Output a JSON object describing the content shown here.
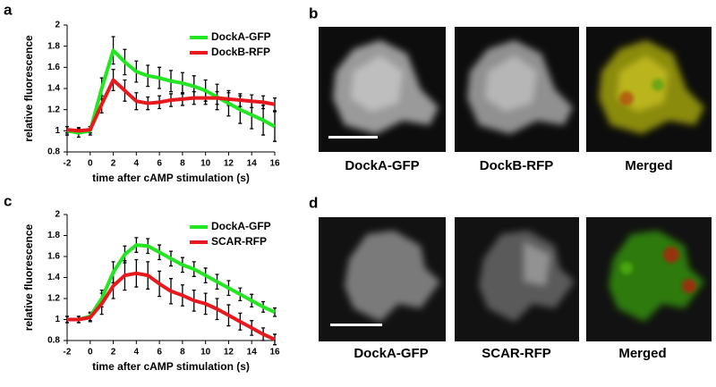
{
  "chart_data": [
    {
      "type": "line",
      "x": [
        -2,
        -1,
        0,
        1,
        2,
        3,
        4,
        5,
        6,
        7,
        8,
        9,
        10,
        11,
        12,
        13,
        14,
        15,
        16
      ],
      "xlabel": "time after cAMP stimulation (s)",
      "ylabel": "relative fluorescence",
      "xlim": [
        -2,
        16
      ],
      "xticks": [
        -2,
        0,
        2,
        4,
        6,
        8,
        10,
        12,
        14,
        16
      ],
      "ylim": [
        0.8,
        2
      ],
      "yticks": [
        0.8,
        1,
        1.2,
        1.4,
        1.6,
        1.8,
        2
      ],
      "legend": "top-right",
      "series": [
        {
          "name": "DockA-GFP",
          "color": "#22e622",
          "values": [
            1.0,
            0.98,
            1.0,
            1.4,
            1.76,
            1.65,
            1.56,
            1.52,
            1.5,
            1.47,
            1.45,
            1.42,
            1.38,
            1.32,
            1.26,
            1.2,
            1.15,
            1.1,
            1.04
          ],
          "errors": [
            0.04,
            0.04,
            0.04,
            0.1,
            0.13,
            0.12,
            0.1,
            0.1,
            0.1,
            0.1,
            0.1,
            0.1,
            0.1,
            0.12,
            0.12,
            0.13,
            0.13,
            0.14,
            0.14
          ]
        },
        {
          "name": "DockB-RFP",
          "color": "#e6191e",
          "values": [
            1.01,
            1.0,
            1.01,
            1.25,
            1.48,
            1.38,
            1.28,
            1.26,
            1.27,
            1.29,
            1.3,
            1.31,
            1.31,
            1.31,
            1.3,
            1.29,
            1.28,
            1.27,
            1.25
          ],
          "errors": [
            0.03,
            0.03,
            0.03,
            0.08,
            0.1,
            0.1,
            0.08,
            0.06,
            0.06,
            0.06,
            0.06,
            0.06,
            0.06,
            0.06,
            0.06,
            0.06,
            0.06,
            0.06,
            0.06
          ]
        }
      ]
    },
    {
      "type": "line",
      "x": [
        -2,
        -1,
        0,
        1,
        2,
        3,
        4,
        5,
        6,
        7,
        8,
        9,
        10,
        11,
        12,
        13,
        14,
        15,
        16
      ],
      "xlabel": "time after cAMP stimulation (s)",
      "ylabel": "relative fluorescence",
      "xlim": [
        -2,
        16
      ],
      "xticks": [
        -2,
        0,
        2,
        4,
        6,
        8,
        10,
        12,
        14,
        16
      ],
      "ylim": [
        0.8,
        2
      ],
      "yticks": [
        0.8,
        1,
        1.2,
        1.4,
        1.6,
        1.8,
        2
      ],
      "legend": "top-right",
      "series": [
        {
          "name": "DockA-GFP",
          "color": "#22e622",
          "values": [
            1.0,
            1.0,
            1.03,
            1.2,
            1.45,
            1.62,
            1.71,
            1.7,
            1.64,
            1.58,
            1.52,
            1.48,
            1.42,
            1.36,
            1.3,
            1.24,
            1.18,
            1.12,
            1.07
          ],
          "errors": [
            0.03,
            0.03,
            0.04,
            0.08,
            0.1,
            0.08,
            0.07,
            0.07,
            0.07,
            0.07,
            0.07,
            0.07,
            0.07,
            0.07,
            0.07,
            0.06,
            0.06,
            0.05,
            0.04
          ]
        },
        {
          "name": "SCAR-RFP",
          "color": "#e6191e",
          "values": [
            1.0,
            1.0,
            1.02,
            1.15,
            1.32,
            1.42,
            1.44,
            1.42,
            1.34,
            1.27,
            1.23,
            1.18,
            1.15,
            1.1,
            1.04,
            0.98,
            0.92,
            0.86,
            0.81
          ],
          "errors": [
            0.03,
            0.03,
            0.04,
            0.1,
            0.12,
            0.14,
            0.13,
            0.13,
            0.12,
            0.12,
            0.1,
            0.1,
            0.1,
            0.1,
            0.1,
            0.08,
            0.07,
            0.06,
            0.05
          ]
        }
      ]
    }
  ],
  "panels": {
    "labels": [
      "a",
      "b",
      "c",
      "d"
    ],
    "captions": [
      [
        "DockA-GFP",
        "DockB-RFP",
        "Merged"
      ],
      [
        "DockA-GFP",
        "SCAR-RFP",
        "Merged"
      ]
    ]
  }
}
